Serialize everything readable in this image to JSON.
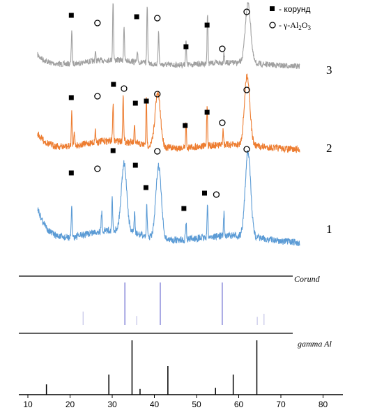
{
  "chart_data": {
    "type": "line",
    "title": "",
    "xlabel": "",
    "ylabel": "",
    "xlim": [
      7,
      84
    ],
    "x_ticks": [
      "10",
      "20",
      "30",
      "40",
      "50",
      "60",
      "70",
      "80"
    ],
    "legend": {
      "placement": "top-right",
      "entries": [
        {
          "marker": "filled-square",
          "label": "- корунд"
        },
        {
          "marker": "open-circle",
          "label_prefix": "- γ-Al",
          "sub1": "2",
          "mid": "O",
          "sub2": "3"
        }
      ]
    },
    "series": [
      {
        "name": "3",
        "color": "#a0a0a0",
        "peaks": [
          [
            20.4,
            0.55
          ],
          [
            26.0,
            0.15
          ],
          [
            30.2,
            0.95
          ],
          [
            32.8,
            0.55
          ],
          [
            36.0,
            0.15
          ],
          [
            38.3,
            0.95
          ],
          [
            41.0,
            0.55
          ],
          [
            47.5,
            0.4
          ],
          [
            52.6,
            0.8
          ],
          [
            56.5,
            0.18
          ],
          [
            62.2,
            0.95
          ]
        ],
        "markers": [
          {
            "type": "square",
            "x": 20.3
          },
          {
            "type": "circle",
            "x": 26.5
          },
          {
            "type": "square",
            "x": 35.8
          },
          {
            "type": "circle",
            "x": 40.7
          },
          {
            "type": "square",
            "x": 47.5
          },
          {
            "type": "square",
            "x": 52.5
          },
          {
            "type": "circle",
            "x": 56.1
          },
          {
            "type": "circle",
            "x": 61.9
          }
        ]
      },
      {
        "name": "2",
        "color": "#ed7d31",
        "peaks": [
          [
            20.4,
            0.4
          ],
          [
            21.0,
            0.2
          ],
          [
            26.0,
            0.15
          ],
          [
            30.2,
            0.45
          ],
          [
            32.6,
            0.6
          ],
          [
            35.3,
            0.2
          ],
          [
            38.1,
            0.55
          ],
          [
            40.8,
            0.65
          ],
          [
            47.5,
            0.3
          ],
          [
            52.5,
            0.5
          ],
          [
            56.3,
            0.2
          ],
          [
            62.0,
            0.85
          ]
        ],
        "markers": [
          {
            "type": "square",
            "x": 20.3
          },
          {
            "type": "circle",
            "x": 26.5
          },
          {
            "type": "square",
            "x": 30.3
          },
          {
            "type": "circle",
            "x": 32.8
          },
          {
            "type": "square",
            "x": 35.5
          },
          {
            "type": "square",
            "x": 38.1
          },
          {
            "type": "circle",
            "x": 40.7
          },
          {
            "type": "square",
            "x": 47.3
          },
          {
            "type": "square",
            "x": 52.5
          },
          {
            "type": "circle",
            "x": 56.1
          },
          {
            "type": "circle",
            "x": 61.9
          }
        ]
      },
      {
        "name": "1",
        "color": "#5b9bd5",
        "peaks": [
          [
            20.4,
            0.35
          ],
          [
            27.5,
            0.2
          ],
          [
            30.0,
            0.35
          ],
          [
            32.8,
            0.75
          ],
          [
            35.3,
            0.25
          ],
          [
            38.2,
            0.35
          ],
          [
            41.0,
            0.8
          ],
          [
            47.5,
            0.2
          ],
          [
            52.6,
            0.35
          ],
          [
            56.5,
            0.25
          ],
          [
            62.2,
            0.95
          ]
        ],
        "markers": [
          {
            "type": "square",
            "x": 20.3
          },
          {
            "type": "circle",
            "x": 26.5
          },
          {
            "type": "square",
            "x": 30.2
          },
          {
            "type": "square",
            "x": 35.5
          },
          {
            "type": "circle",
            "x": 40.7
          },
          {
            "type": "square",
            "x": 38.0
          },
          {
            "type": "square",
            "x": 47.0
          },
          {
            "type": "square",
            "x": 51.9
          },
          {
            "type": "circle",
            "x": 54.7
          },
          {
            "type": "circle",
            "x": 61.9
          }
        ]
      }
    ],
    "references": [
      {
        "name": "Corund",
        "color": "#6b6bd0",
        "lines": [
          [
            23.1,
            0.3
          ],
          [
            33.0,
            0.95
          ],
          [
            35.8,
            0.2
          ],
          [
            41.4,
            0.95
          ],
          [
            56.1,
            0.95
          ],
          [
            64.4,
            0.18
          ],
          [
            66.0,
            0.25
          ]
        ]
      },
      {
        "name": "gamma Al",
        "color": "#000000",
        "lines": [
          [
            14.4,
            0.18
          ],
          [
            29.2,
            0.35
          ],
          [
            34.7,
            0.95
          ],
          [
            36.6,
            0.1
          ],
          [
            43.2,
            0.5
          ],
          [
            54.5,
            0.12
          ],
          [
            58.7,
            0.35
          ],
          [
            64.3,
            0.95
          ]
        ]
      }
    ]
  }
}
